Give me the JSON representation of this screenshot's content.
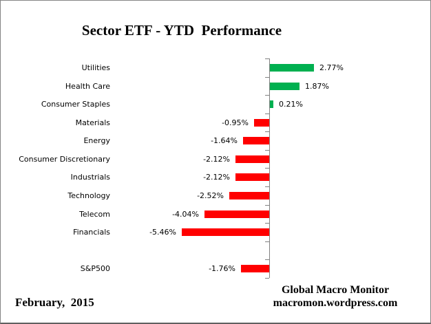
{
  "title": "Sector ETF - YTD  Performance",
  "footer": {
    "date": "February,  2015",
    "source_line1": "Global Macro Monitor",
    "source_line2": "macromon.wordpress.com"
  },
  "colors": {
    "positive_bar": "#00B050",
    "negative_bar": "#FF0000",
    "axis": "#808080",
    "text": "#000000"
  },
  "chart_data": {
    "type": "bar",
    "orientation": "horizontal",
    "title": "Sector ETF - YTD  Performance",
    "unit": "%",
    "xlim": [
      -7,
      9
    ],
    "grid": false,
    "legend": false,
    "value_labels_shown": true,
    "rows": [
      {
        "label": "Utilities",
        "value": 2.77,
        "display": "2.77%"
      },
      {
        "label": "Health Care",
        "value": 1.87,
        "display": "1.87%"
      },
      {
        "label": "Consumer Staples",
        "value": 0.21,
        "display": "0.21%"
      },
      {
        "label": "Materials",
        "value": -0.95,
        "display": "-0.95%"
      },
      {
        "label": "Energy",
        "value": -1.64,
        "display": "-1.64%"
      },
      {
        "label": "Consumer Discretionary",
        "value": -2.12,
        "display": "-2.12%"
      },
      {
        "label": "Industrials",
        "value": -2.12,
        "display": "-2.12%"
      },
      {
        "label": "Technology",
        "value": -2.52,
        "display": "-2.52%"
      },
      {
        "label": "Telecom",
        "value": -4.04,
        "display": "-4.04%"
      },
      {
        "label": "Financials",
        "value": -5.46,
        "display": "-5.46%"
      },
      {
        "label": "",
        "value": null,
        "display": ""
      },
      {
        "label": "S&P500",
        "value": -1.76,
        "display": "-1.76%"
      }
    ]
  }
}
